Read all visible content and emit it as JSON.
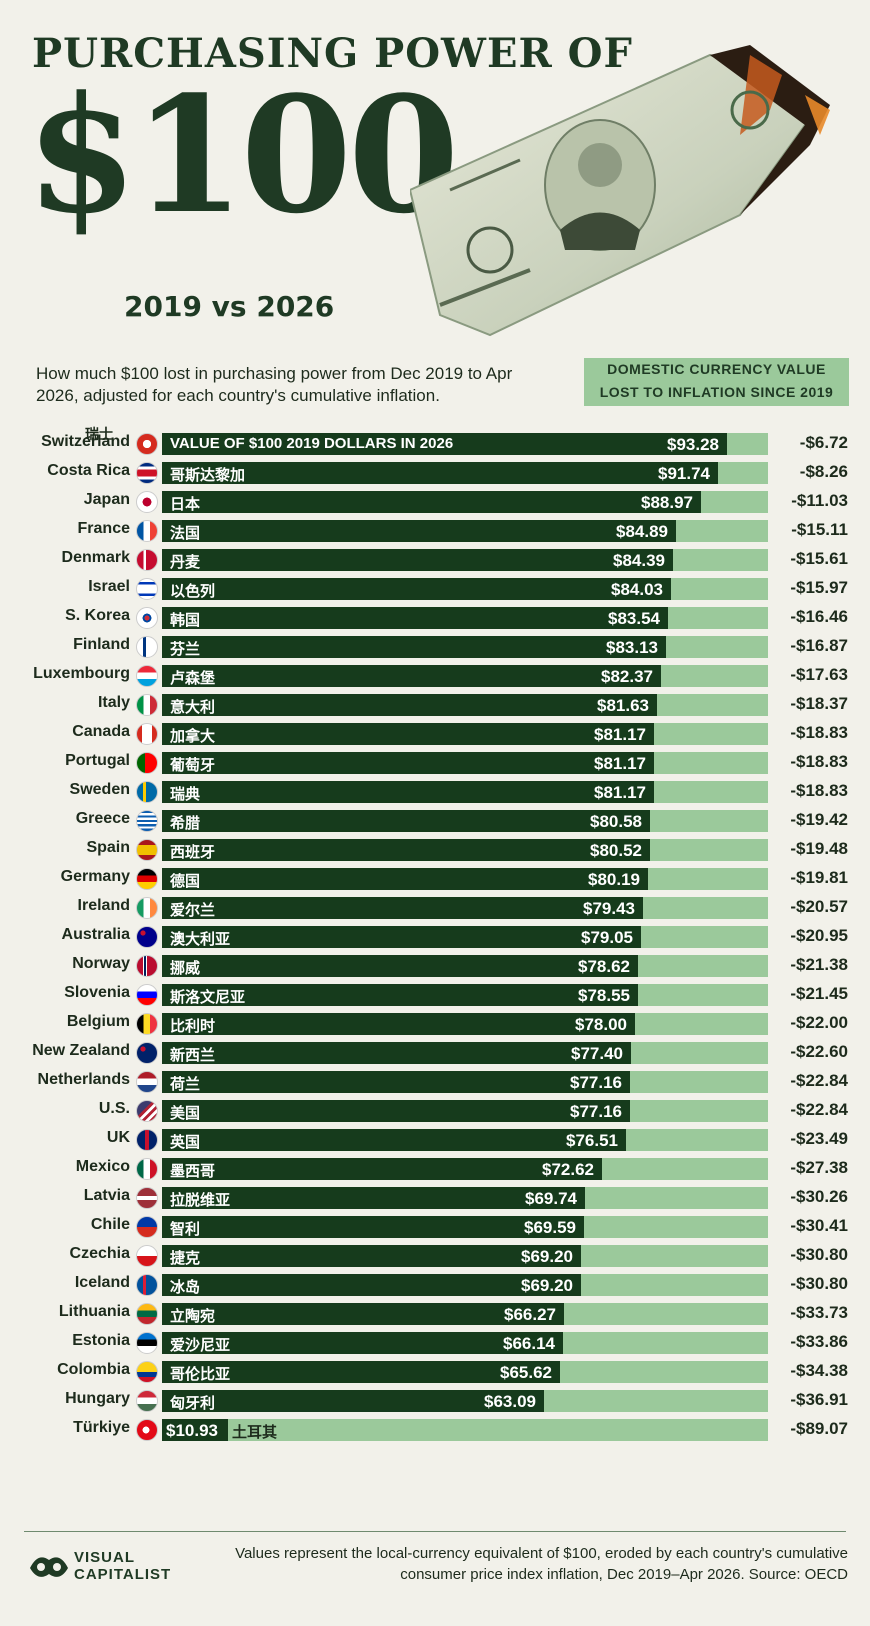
{
  "header": {
    "title_line1": "PURCHASING POWER OF",
    "title_line2": "$100",
    "subtitle": "2019 vs 2026",
    "intro": "How much $100 lost in purchasing power from Dec 2019 to Apr 2026, adjusted for each country's cumulative inflation.",
    "legend_line1": "DOMESTIC CURRENCY VALUE",
    "legend_line2": "LOST TO INFLATION SINCE 2019",
    "first_row_native_label": "瑞士",
    "bar_label": "VALUE OF $100 2019 DOLLARS IN 2026"
  },
  "colors": {
    "bar": "#163b1c",
    "track": "#9bc99b",
    "title": "#1f3a24",
    "background": "#f2f1ea"
  },
  "chart_data": {
    "type": "bar",
    "orientation": "horizontal",
    "xlim": [
      0,
      100
    ],
    "rows": [
      {
        "country": "Switzerland",
        "native": "",
        "value": 93.28,
        "value_label": "$93.28",
        "lost_label": "-$6.72",
        "flag": "ch"
      },
      {
        "country": "Costa Rica",
        "native": "哥斯达黎加",
        "value": 91.74,
        "value_label": "$91.74",
        "lost_label": "-$8.26",
        "flag": "cr"
      },
      {
        "country": "Japan",
        "native": "日本",
        "value": 88.97,
        "value_label": "$88.97",
        "lost_label": "-$11.03",
        "flag": "jp"
      },
      {
        "country": "France",
        "native": "法国",
        "value": 84.89,
        "value_label": "$84.89",
        "lost_label": "-$15.11",
        "flag": "fr"
      },
      {
        "country": "Denmark",
        "native": "丹麦",
        "value": 84.39,
        "value_label": "$84.39",
        "lost_label": "-$15.61",
        "flag": "dk"
      },
      {
        "country": "Israel",
        "native": "以色列",
        "value": 84.03,
        "value_label": "$84.03",
        "lost_label": "-$15.97",
        "flag": "il"
      },
      {
        "country": "S. Korea",
        "native": "韩国",
        "value": 83.54,
        "value_label": "$83.54",
        "lost_label": "-$16.46",
        "flag": "kr"
      },
      {
        "country": "Finland",
        "native": "芬兰",
        "value": 83.13,
        "value_label": "$83.13",
        "lost_label": "-$16.87",
        "flag": "fi"
      },
      {
        "country": "Luxembourg",
        "native": "卢森堡",
        "value": 82.37,
        "value_label": "$82.37",
        "lost_label": "-$17.63",
        "flag": "lu"
      },
      {
        "country": "Italy",
        "native": "意大利",
        "value": 81.63,
        "value_label": "$81.63",
        "lost_label": "-$18.37",
        "flag": "it"
      },
      {
        "country": "Canada",
        "native": "加拿大",
        "value": 81.17,
        "value_label": "$81.17",
        "lost_label": "-$18.83",
        "flag": "ca"
      },
      {
        "country": "Portugal",
        "native": "葡萄牙",
        "value": 81.17,
        "value_label": "$81.17",
        "lost_label": "-$18.83",
        "flag": "pt"
      },
      {
        "country": "Sweden",
        "native": "瑞典",
        "value": 81.17,
        "value_label": "$81.17",
        "lost_label": "-$18.83",
        "flag": "se"
      },
      {
        "country": "Greece",
        "native": "希腊",
        "value": 80.58,
        "value_label": "$80.58",
        "lost_label": "-$19.42",
        "flag": "gr"
      },
      {
        "country": "Spain",
        "native": "西班牙",
        "value": 80.52,
        "value_label": "$80.52",
        "lost_label": "-$19.48",
        "flag": "es"
      },
      {
        "country": "Germany",
        "native": "德国",
        "value": 80.19,
        "value_label": "$80.19",
        "lost_label": "-$19.81",
        "flag": "de"
      },
      {
        "country": "Ireland",
        "native": "爱尔兰",
        "value": 79.43,
        "value_label": "$79.43",
        "lost_label": "-$20.57",
        "flag": "ie"
      },
      {
        "country": "Australia",
        "native": "澳大利亚",
        "value": 79.05,
        "value_label": "$79.05",
        "lost_label": "-$20.95",
        "flag": "au"
      },
      {
        "country": "Norway",
        "native": "挪威",
        "value": 78.62,
        "value_label": "$78.62",
        "lost_label": "-$21.38",
        "flag": "no"
      },
      {
        "country": "Slovenia",
        "native": "斯洛文尼亚",
        "value": 78.55,
        "value_label": "$78.55",
        "lost_label": "-$21.45",
        "flag": "si"
      },
      {
        "country": "Belgium",
        "native": "比利时",
        "value": 78.0,
        "value_label": "$78.00",
        "lost_label": "-$22.00",
        "flag": "be"
      },
      {
        "country": "New Zealand",
        "native": "新西兰",
        "value": 77.4,
        "value_label": "$77.40",
        "lost_label": "-$22.60",
        "flag": "nz"
      },
      {
        "country": "Netherlands",
        "native": "荷兰",
        "value": 77.16,
        "value_label": "$77.16",
        "lost_label": "-$22.84",
        "flag": "nl"
      },
      {
        "country": "U.S.",
        "native": "美国",
        "value": 77.16,
        "value_label": "$77.16",
        "lost_label": "-$22.84",
        "flag": "us"
      },
      {
        "country": "UK",
        "native": "英国",
        "value": 76.51,
        "value_label": "$76.51",
        "lost_label": "-$23.49",
        "flag": "uk"
      },
      {
        "country": "Mexico",
        "native": "墨西哥",
        "value": 72.62,
        "value_label": "$72.62",
        "lost_label": "-$27.38",
        "flag": "mx"
      },
      {
        "country": "Latvia",
        "native": "拉脱维亚",
        "value": 69.74,
        "value_label": "$69.74",
        "lost_label": "-$30.26",
        "flag": "lv"
      },
      {
        "country": "Chile",
        "native": "智利",
        "value": 69.59,
        "value_label": "$69.59",
        "lost_label": "-$30.41",
        "flag": "cl"
      },
      {
        "country": "Czechia",
        "native": "捷克",
        "value": 69.2,
        "value_label": "$69.20",
        "lost_label": "-$30.80",
        "flag": "cz"
      },
      {
        "country": "Iceland",
        "native": "冰岛",
        "value": 69.2,
        "value_label": "$69.20",
        "lost_label": "-$30.80",
        "flag": "is"
      },
      {
        "country": "Lithuania",
        "native": "立陶宛",
        "value": 66.27,
        "value_label": "$66.27",
        "lost_label": "-$33.73",
        "flag": "lt"
      },
      {
        "country": "Estonia",
        "native": "爱沙尼亚",
        "value": 66.14,
        "value_label": "$66.14",
        "lost_label": "-$33.86",
        "flag": "ee"
      },
      {
        "country": "Colombia",
        "native": "哥伦比亚",
        "value": 65.62,
        "value_label": "$65.62",
        "lost_label": "-$34.38",
        "flag": "co"
      },
      {
        "country": "Hungary",
        "native": "匈牙利",
        "value": 63.09,
        "value_label": "$63.09",
        "lost_label": "-$36.91",
        "flag": "hu"
      },
      {
        "country": "Türkiye",
        "native": "土耳其",
        "value": 10.93,
        "value_label": "$10.93",
        "lost_label": "-$89.07",
        "flag": "tr"
      }
    ]
  },
  "footer": {
    "logo_line1": "VISUAL",
    "logo_line2": "CAPITALIST",
    "note": "Values represent the local-currency equivalent of $100, eroded by each country's cumulative consumer price index inflation, Dec 2019–Apr 2026. Source: OECD"
  }
}
